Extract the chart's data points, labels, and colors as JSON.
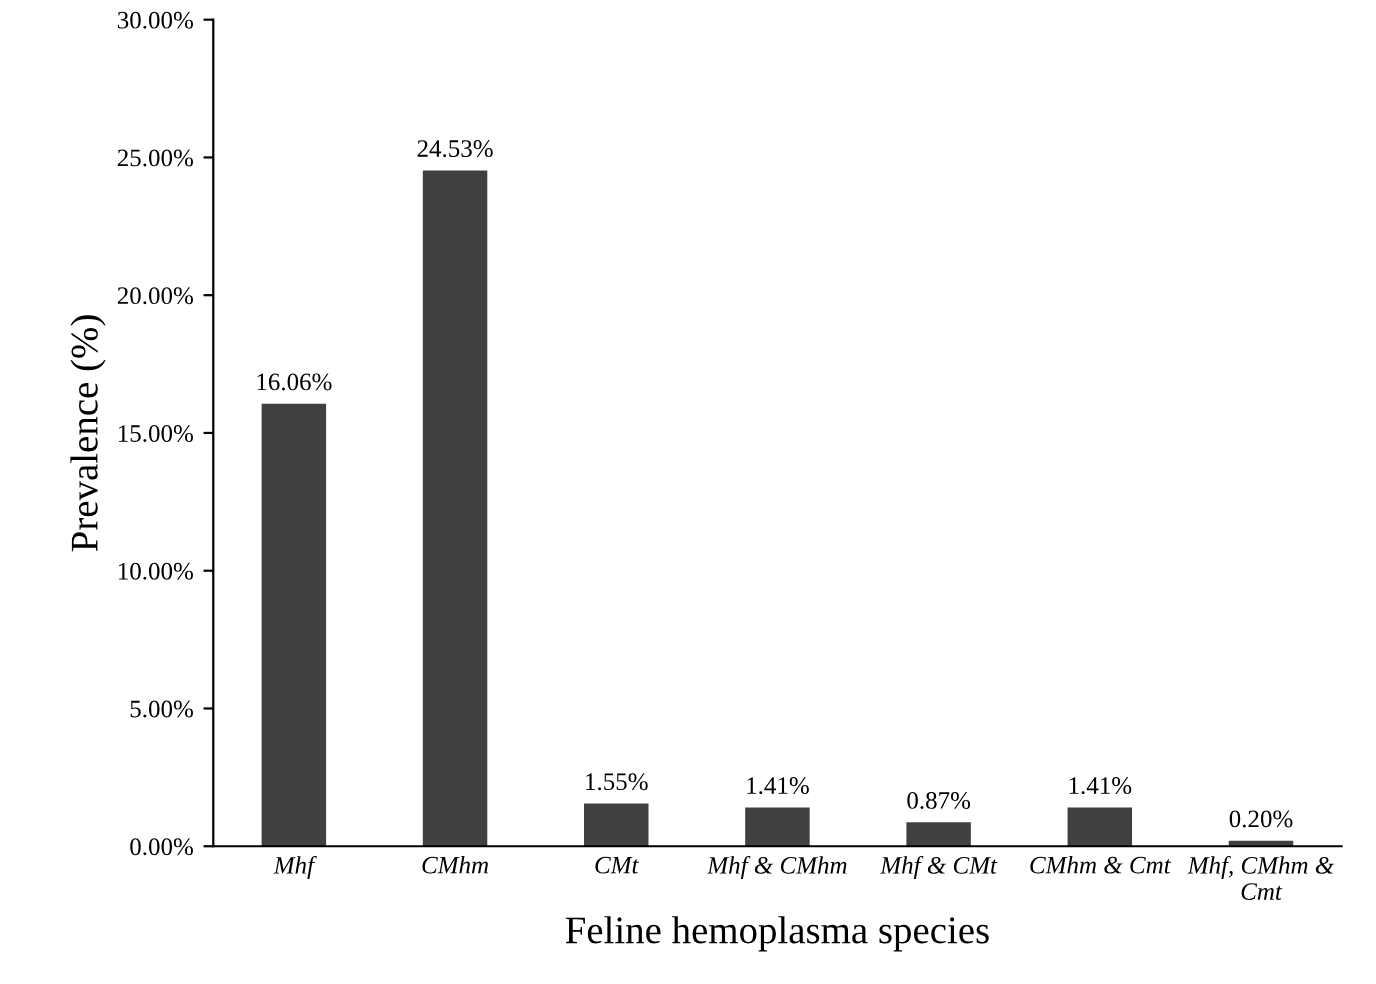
{
  "chart_data": {
    "type": "bar",
    "xlabel": "Feline hemoplasma species",
    "ylabel": "Prevalence (%)",
    "categories": [
      "Mhf",
      "CMhm",
      "CMt",
      "Mhf & CMhm",
      "Mhf & CMt",
      "CMhm & Cmt",
      "Mhf, CMhm &\nCmt"
    ],
    "values": [
      16.06,
      24.53,
      1.55,
      1.41,
      0.87,
      1.41,
      0.2
    ],
    "value_labels": [
      "16.06%",
      "24.53%",
      "1.55%",
      "1.41%",
      "0.87%",
      "1.41%",
      "0.20%"
    ],
    "color": "#404040",
    "ylim": [
      0,
      30
    ],
    "yticks": [
      {
        "value": 0,
        "label": "0.00%"
      },
      {
        "value": 5,
        "label": "5.00%"
      },
      {
        "value": 10,
        "label": "10.00%"
      },
      {
        "value": 15,
        "label": "15.00%"
      },
      {
        "value": 20,
        "label": "20.00%"
      },
      {
        "value": 25,
        "label": "25.00%"
      },
      {
        "value": 30,
        "label": "30.00%"
      }
    ],
    "grid": false,
    "legend": false
  }
}
